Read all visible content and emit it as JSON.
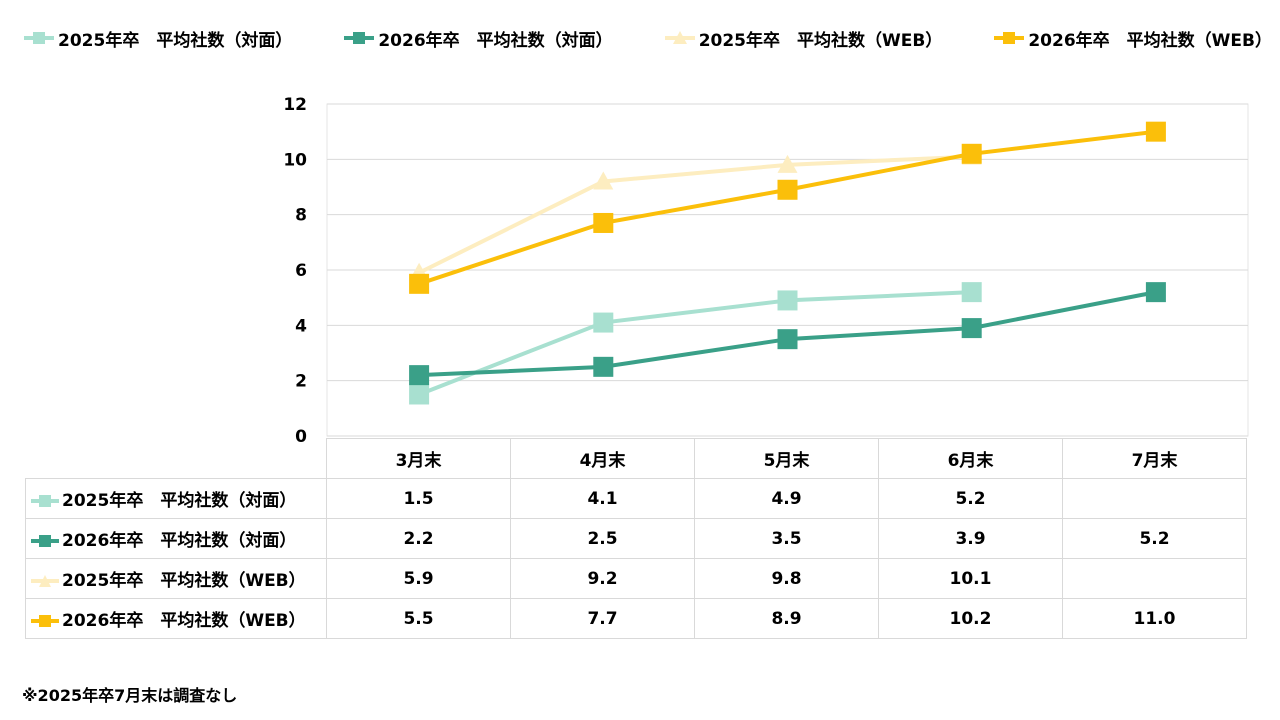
{
  "chart_data": {
    "type": "line",
    "categories": [
      "3月末",
      "4月末",
      "5月末",
      "6月末",
      "7月末"
    ],
    "series": [
      {
        "name": "2025年卒　平均社数（対面）",
        "values": [
          1.5,
          4.1,
          4.9,
          5.2,
          null
        ],
        "color": "#a8e0d0",
        "marker": "square",
        "labels": [
          "1.5",
          "4.1",
          "4.9",
          "5.2",
          ""
        ]
      },
      {
        "name": "2026年卒　平均社数（対面）",
        "values": [
          2.2,
          2.5,
          3.5,
          3.9,
          5.2
        ],
        "color": "#3aa088",
        "marker": "square",
        "labels": [
          "2.2",
          "2.5",
          "3.5",
          "3.9",
          "5.2"
        ]
      },
      {
        "name": "2025年卒　平均社数（WEB）",
        "values": [
          5.9,
          9.2,
          9.8,
          10.1,
          null
        ],
        "color": "#fdedc0",
        "marker": "triangle",
        "labels": [
          "5.9",
          "9.2",
          "9.8",
          "10.1",
          ""
        ]
      },
      {
        "name": "2026年卒　平均社数（WEB）",
        "values": [
          5.5,
          7.7,
          8.9,
          10.2,
          11.0
        ],
        "color": "#fbbf0a",
        "marker": "square",
        "labels": [
          "5.5",
          "7.7",
          "8.9",
          "10.2",
          "11.0"
        ]
      }
    ],
    "ylim": [
      0,
      12
    ],
    "yticks": [
      "0",
      "2",
      "4",
      "6",
      "8",
      "10",
      "12"
    ],
    "grid": true,
    "legend_position": "top",
    "data_table": true
  },
  "footnote": "※2025年卒7月末は調査なし"
}
